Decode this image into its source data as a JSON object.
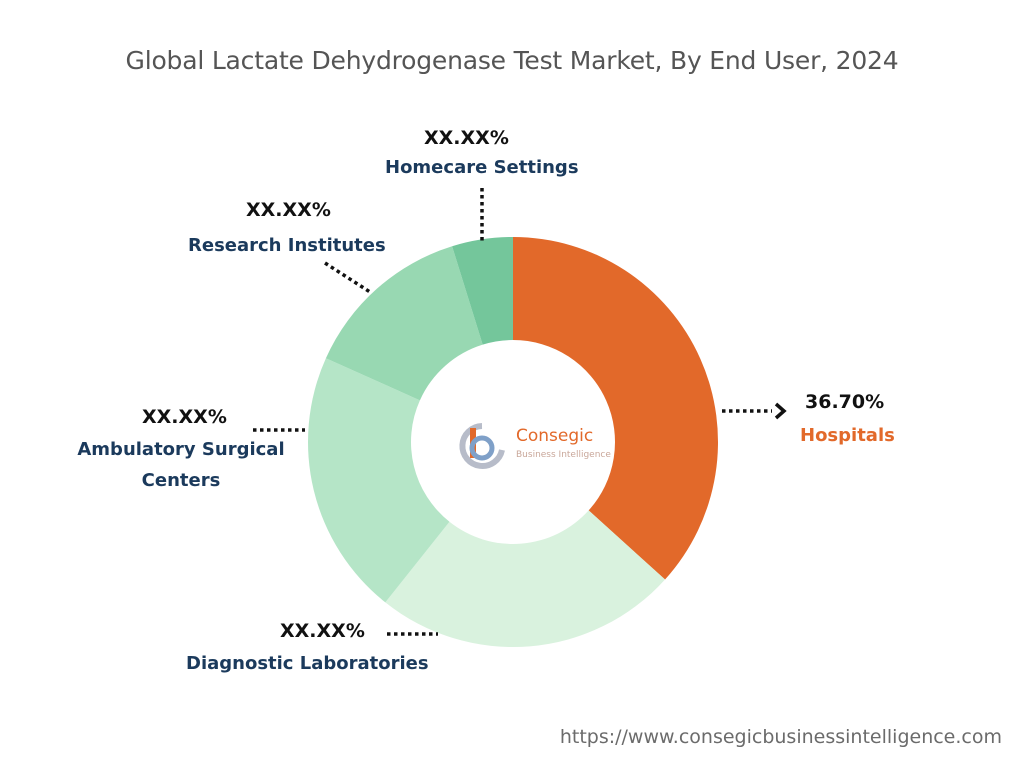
{
  "chart_data": {
    "type": "pie",
    "title": "Global Lactate Dehydrogenase Test Market, By End User, 2024",
    "categories": [
      "Hospitals",
      "Diagnostic Laboratories",
      "Ambulatory Surgical Centers",
      "Research Institutes",
      "Homecare Settings"
    ],
    "values": [
      36.7,
      24.0,
      21.0,
      13.5,
      4.8
    ],
    "value_labels": [
      "36.70%",
      "XX.XX%",
      "XX.XX%",
      "XX.XX%",
      "XX.XX%"
    ],
    "colors": [
      "#e2692a",
      "#d9f2de",
      "#b5e5c7",
      "#98d8b2",
      "#74c69b"
    ],
    "legend": "none"
  },
  "source": {
    "url": "https://www.consegicbusinessintelligence.com"
  },
  "logo": {
    "name": "Consegic",
    "tagline": "Business Intelligence"
  }
}
